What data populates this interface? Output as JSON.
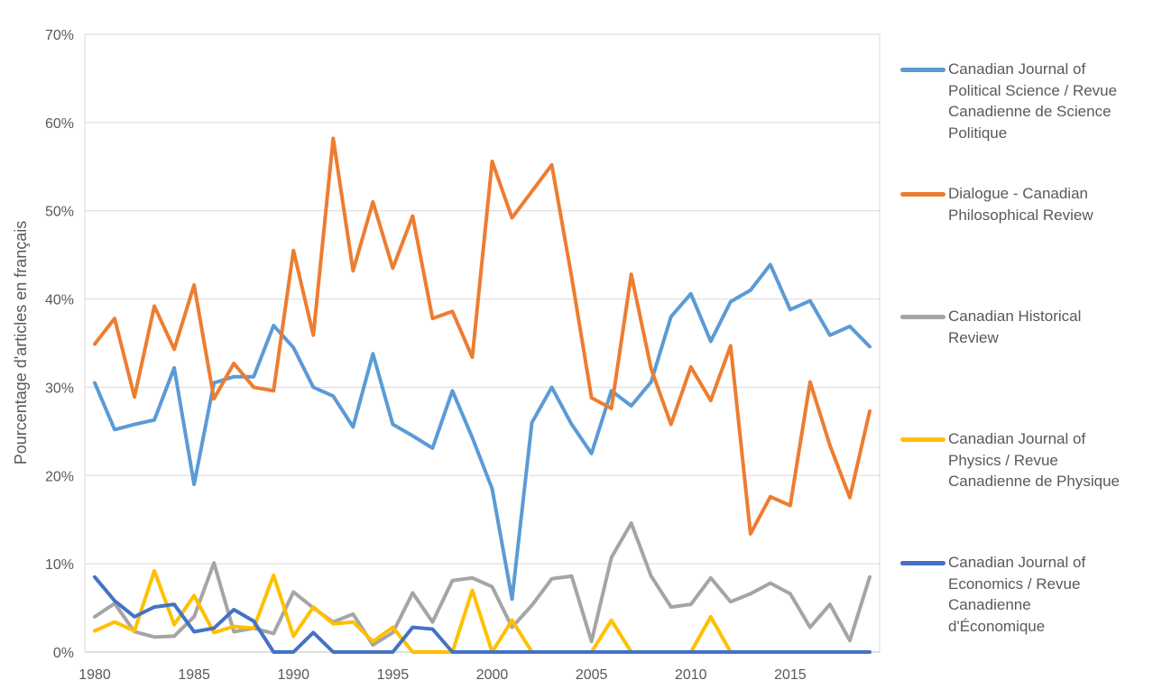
{
  "chart_data": {
    "type": "line",
    "title": "",
    "xlabel": "",
    "ylabel": "Pourcentage d'articles en français",
    "x": [
      1980,
      1981,
      1982,
      1983,
      1984,
      1985,
      1986,
      1987,
      1988,
      1989,
      1990,
      1991,
      1992,
      1993,
      1994,
      1995,
      1996,
      1997,
      1998,
      1999,
      2000,
      2001,
      2002,
      2003,
      2004,
      2005,
      2006,
      2007,
      2008,
      2009,
      2010,
      2011,
      2012,
      2013,
      2014,
      2015,
      2016,
      2017,
      2018,
      2019
    ],
    "xticks": [
      1980,
      1985,
      1990,
      1995,
      2000,
      2005,
      2010,
      2015
    ],
    "xtick_labels": [
      "1980",
      "1985",
      "1990",
      "1995",
      "2000",
      "2005",
      "2010",
      "2015"
    ],
    "ylim": [
      0,
      70
    ],
    "yticks": [
      0,
      10,
      20,
      30,
      40,
      50,
      60,
      70
    ],
    "ytick_labels": [
      "0%",
      "10%",
      "20%",
      "30%",
      "40%",
      "50%",
      "60%",
      "70%"
    ],
    "grid": true,
    "legend_position": "right",
    "series": [
      {
        "name": "Canadian Journal of Political Science / Revue Canadienne de Science Politique",
        "color": "#5B9BD5",
        "values": [
          30.5,
          25.2,
          25.8,
          26.3,
          32.2,
          19.0,
          30.5,
          31.2,
          31.2,
          37.0,
          34.5,
          30.0,
          29.0,
          25.5,
          33.8,
          25.8,
          24.5,
          23.1,
          29.6,
          24.3,
          18.5,
          6.0,
          26.0,
          30.0,
          25.8,
          22.5,
          29.6,
          27.9,
          30.6,
          38.0,
          40.6,
          35.2,
          39.7,
          41.0,
          43.9,
          38.8,
          39.8,
          35.9,
          36.9,
          34.6
        ]
      },
      {
        "name": "Dialogue - Canadian Philosophical Review",
        "color": "#ED7D31",
        "values": [
          34.9,
          37.8,
          28.9,
          39.2,
          34.3,
          41.6,
          28.7,
          32.7,
          30.0,
          29.6,
          45.5,
          35.9,
          58.2,
          43.2,
          51.0,
          43.5,
          49.4,
          37.8,
          38.6,
          33.4,
          55.6,
          49.2,
          52.2,
          55.2,
          42.5,
          28.8,
          27.6,
          42.8,
          32.1,
          25.8,
          32.3,
          28.5,
          34.7,
          13.4,
          17.6,
          16.6,
          30.6,
          23.4,
          17.5,
          27.3
        ]
      },
      {
        "name": "Canadian Historical Review",
        "color": "#A5A5A5",
        "values": [
          4.0,
          5.5,
          2.3,
          1.7,
          1.8,
          4.0,
          10.1,
          2.3,
          2.7,
          2.1,
          6.8,
          5.0,
          3.4,
          4.3,
          0.8,
          2.2,
          6.7,
          3.4,
          8.1,
          8.4,
          7.4,
          2.8,
          5.3,
          8.3,
          8.6,
          1.2,
          10.7,
          14.6,
          8.6,
          5.1,
          5.4,
          8.4,
          5.7,
          6.6,
          7.8,
          6.6,
          2.8,
          5.4,
          1.3,
          8.5
        ]
      },
      {
        "name": "Canadian Journal of Physics / Revue Canadienne de Physique",
        "color": "#FFC000",
        "values": [
          2.4,
          3.4,
          2.4,
          9.2,
          3.1,
          6.4,
          2.2,
          2.9,
          2.7,
          8.7,
          1.8,
          5.1,
          3.2,
          3.4,
          1.2,
          2.8,
          0,
          0,
          0,
          7.0,
          0,
          3.6,
          0,
          0,
          0,
          0,
          3.6,
          0,
          0,
          0,
          0,
          4.0,
          0,
          null,
          null,
          null,
          null,
          null,
          null,
          null
        ]
      },
      {
        "name": "Canadian Journal of Economics / Revue Canadienne d'Économique",
        "color": "#4472C4",
        "values": [
          8.5,
          5.8,
          4.0,
          5.1,
          5.4,
          2.3,
          2.7,
          4.8,
          3.5,
          0,
          0,
          2.2,
          0,
          0,
          0,
          0,
          2.8,
          2.6,
          0,
          0,
          0,
          0,
          0,
          0,
          0,
          0,
          0,
          0,
          0,
          0,
          0,
          0,
          0,
          0,
          0,
          0,
          0,
          0,
          0,
          0
        ]
      }
    ]
  }
}
